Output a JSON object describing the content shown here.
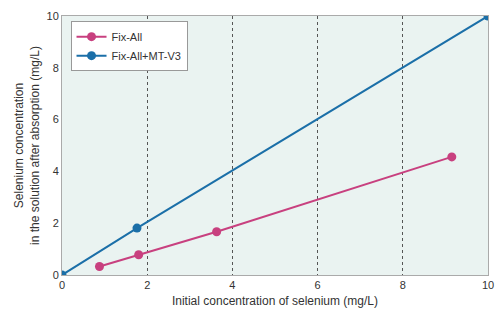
{
  "chart_data": {
    "type": "line",
    "x_label": "Initial concentration of selenium (mg/L)",
    "y_label": [
      "Selenium concentration",
      "in the solution after absorption (mg/L)"
    ],
    "series": [
      {
        "name": "Fix-All",
        "color": "#c8407f",
        "marker": "circle",
        "x": [
          0.88,
          1.8,
          3.63,
          9.15
        ],
        "values": [
          0.33,
          0.78,
          1.67,
          4.56
        ]
      },
      {
        "name": "Fix-All+MT-V3",
        "color": "#1b6fa8",
        "marker": "circle",
        "x": [
          0,
          1.76,
          10
        ],
        "values": [
          0,
          1.81,
          10
        ]
      }
    ],
    "xlim": [
      0,
      10
    ],
    "xticks": [
      0,
      2,
      4,
      6,
      8,
      10
    ],
    "ylim": [
      0,
      10
    ],
    "yticks": [
      0,
      2,
      4,
      6,
      8,
      10
    ],
    "grid": true,
    "legend": "upper left"
  }
}
